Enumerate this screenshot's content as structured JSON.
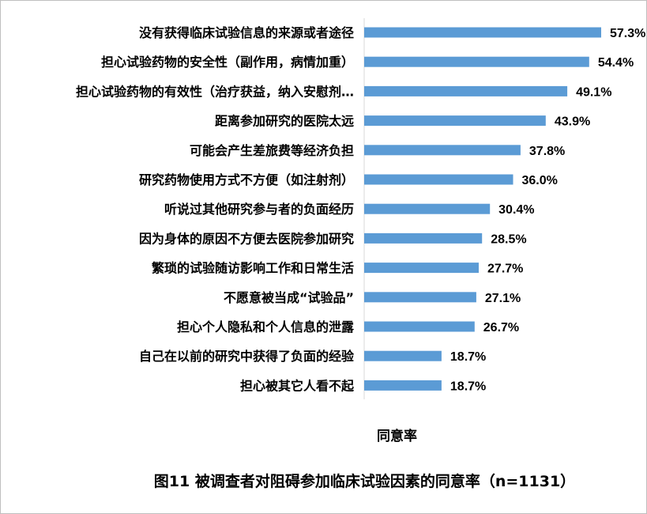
{
  "chart_data": {
    "type": "bar",
    "orientation": "horizontal",
    "title": "图11 被调查者对阻碍参加临床试验因素的同意率（n=1131）",
    "xlabel": "同意率",
    "ylabel": "",
    "xlim": [
      0,
      60
    ],
    "grid": false,
    "legend": "none",
    "bar_color": "#5b9bd5",
    "value_suffix": "%",
    "categories": [
      "没有获得临床试验信息的来源或者途径",
      "担心试验药物的安全性（副作用，病情加重）",
      "担心试验药物的有效性（治疗获益，纳入安慰剂…",
      "距离参加研究的医院太远",
      "可能会产生差旅费等经济负担",
      "研究药物使用方式不方便（如注射剂）",
      "听说过其他研究参与者的负面经历",
      "因为身体的原因不方便去医院参加研究",
      "繁琐的试验随访影响工作和日常生活",
      "不愿意被当成“试验品”",
      "担心个人隐私和个人信息的泄露",
      "自己在以前的研究中获得了负面的经验",
      "担心被其它人看不起"
    ],
    "values": [
      57.3,
      54.4,
      49.1,
      43.9,
      37.8,
      36.0,
      30.4,
      28.5,
      27.7,
      27.1,
      26.7,
      18.7,
      18.7
    ],
    "value_labels": [
      "57.3%",
      "54.4%",
      "49.1%",
      "43.9%",
      "37.8%",
      "36.0%",
      "30.4%",
      "28.5%",
      "27.7%",
      "27.1%",
      "26.7%",
      "18.7%",
      "18.7%"
    ]
  }
}
